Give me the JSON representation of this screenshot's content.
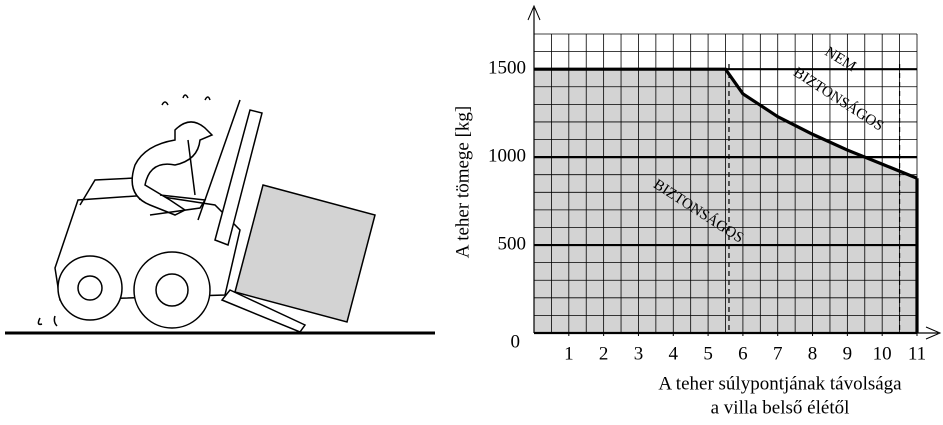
{
  "chart_data": {
    "type": "area",
    "y_label": "A teher tömege [kg]",
    "x_label": [
      "A teher súlypontjának távolsága",
      "a villa belső élétől"
    ],
    "x": [
      0,
      5.5,
      6,
      7,
      8,
      9,
      10,
      11
    ],
    "values": [
      1500,
      1500,
      1360,
      1230,
      1130,
      1040,
      960,
      880
    ],
    "color": "#d3d3d3",
    "xlim": [
      0,
      11
    ],
    "ylim": [
      0,
      1700
    ],
    "xticks": [
      1,
      2,
      3,
      4,
      5,
      6,
      7,
      8,
      9,
      10,
      11
    ],
    "yticks": [
      0,
      500,
      1000,
      1500
    ],
    "grid": true,
    "minor_grid": {
      "x_step": 0.5,
      "y_step": 100
    },
    "reference_lines": [
      5.6,
      10.5
    ],
    "annotations": [
      "NEM",
      "BIZTONSÁGOS",
      "BIZTONSÁGOS"
    ]
  }
}
